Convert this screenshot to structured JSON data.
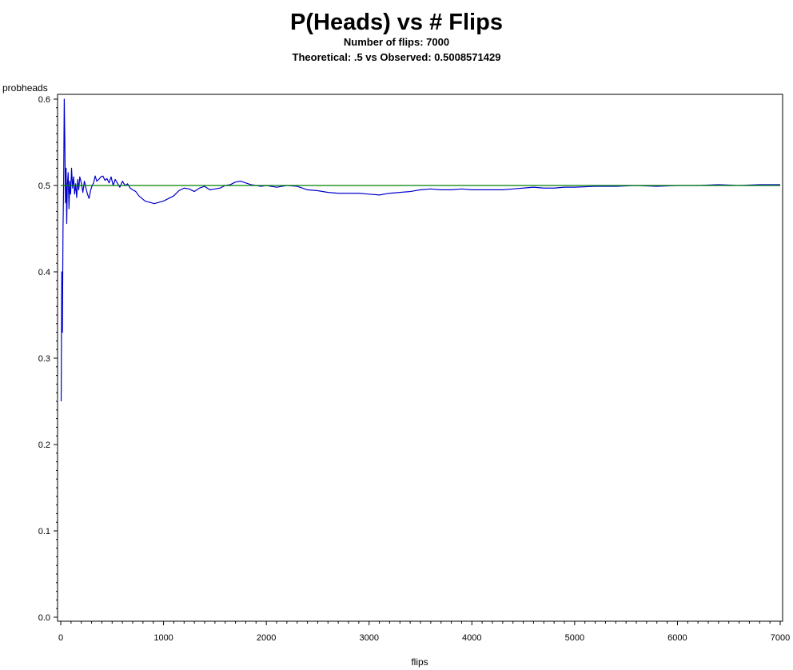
{
  "chart_data": {
    "type": "line",
    "title": "P(Heads) vs # Flips",
    "subtitles": [
      "Number of flips: 7000",
      "Theoretical: .5 vs Observed: 0.5008571429"
    ],
    "xlabel": "flips",
    "ylabel": "probheads",
    "xlim": [
      0,
      7000
    ],
    "ylim": [
      0.0,
      0.6
    ],
    "x_ticks": [
      0,
      1000,
      2000,
      3000,
      4000,
      5000,
      6000,
      7000
    ],
    "y_ticks": [
      0.0,
      0.1,
      0.2,
      0.3,
      0.4,
      0.5,
      0.6
    ],
    "grid": false,
    "series": [
      {
        "color": "#0000cc",
        "x": [
          4,
          10,
          16,
          22,
          28,
          34,
          40,
          46,
          52,
          58,
          64,
          72,
          80,
          88,
          96,
          105,
          115,
          125,
          135,
          145,
          155,
          165,
          175,
          185,
          200,
          215,
          230,
          245,
          260,
          275,
          290,
          305,
          320,
          335,
          350,
          370,
          390,
          410,
          430,
          450,
          470,
          490,
          510,
          530,
          550,
          575,
          600,
          625,
          650,
          675,
          700,
          730,
          760,
          790,
          820,
          850,
          880,
          910,
          940,
          970,
          1000,
          1050,
          1100,
          1150,
          1200,
          1250,
          1300,
          1350,
          1400,
          1450,
          1500,
          1550,
          1600,
          1650,
          1700,
          1750,
          1800,
          1850,
          1900,
          1950,
          2000,
          2100,
          2200,
          2300,
          2400,
          2500,
          2600,
          2700,
          2800,
          2900,
          3000,
          3100,
          3200,
          3300,
          3400,
          3500,
          3600,
          3700,
          3800,
          3900,
          4000,
          4100,
          4200,
          4300,
          4400,
          4500,
          4600,
          4700,
          4800,
          4900,
          5000,
          5200,
          5400,
          5600,
          5800,
          6000,
          6200,
          6400,
          6600,
          6800,
          7000
        ],
        "y": [
          0.25,
          0.4,
          0.33,
          0.45,
          0.5,
          0.6,
          0.55,
          0.48,
          0.52,
          0.456,
          0.5,
          0.515,
          0.473,
          0.505,
          0.49,
          0.52,
          0.497,
          0.51,
          0.49,
          0.502,
          0.486,
          0.507,
          0.495,
          0.51,
          0.503,
          0.492,
          0.505,
          0.497,
          0.49,
          0.485,
          0.494,
          0.5,
          0.503,
          0.511,
          0.505,
          0.507,
          0.51,
          0.511,
          0.506,
          0.508,
          0.503,
          0.51,
          0.5,
          0.507,
          0.503,
          0.498,
          0.505,
          0.5,
          0.502,
          0.497,
          0.495,
          0.493,
          0.488,
          0.485,
          0.482,
          0.481,
          0.48,
          0.479,
          0.48,
          0.481,
          0.482,
          0.485,
          0.488,
          0.494,
          0.497,
          0.496,
          0.493,
          0.497,
          0.499,
          0.495,
          0.496,
          0.497,
          0.5,
          0.501,
          0.504,
          0.505,
          0.503,
          0.501,
          0.5,
          0.499,
          0.5,
          0.498,
          0.5,
          0.499,
          0.495,
          0.494,
          0.492,
          0.491,
          0.491,
          0.491,
          0.49,
          0.489,
          0.491,
          0.492,
          0.493,
          0.495,
          0.496,
          0.495,
          0.495,
          0.496,
          0.495,
          0.495,
          0.495,
          0.495,
          0.496,
          0.497,
          0.498,
          0.497,
          0.497,
          0.498,
          0.498,
          0.499,
          0.499,
          0.5,
          0.499,
          0.5,
          0.5,
          0.501,
          0.5,
          0.5009,
          0.5009
        ]
      },
      {
        "color": "#008000",
        "x": [
          0,
          7000
        ],
        "y": [
          0.5,
          0.5
        ]
      }
    ]
  }
}
